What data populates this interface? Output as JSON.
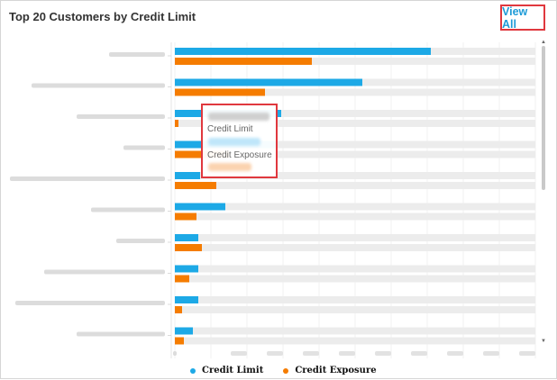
{
  "header": {
    "title": "Top 20 Customers by Credit Limit",
    "view_all": "View All"
  },
  "tooltip": {
    "limit_label": "Credit Limit",
    "exposure_label": "Credit Exposure"
  },
  "colors": {
    "limit": "#1da9e6",
    "exposure": "#f57c00",
    "track": "#ececec",
    "highlight": "#e0383e",
    "link": "#1e9bd7"
  },
  "chart_data": {
    "type": "bar",
    "orientation": "horizontal",
    "title": "Top 20 Customers by Credit Limit",
    "xlim": [
      0,
      10
    ],
    "series": [
      {
        "name": "Credit Limit",
        "values": [
          7.1,
          5.2,
          2.95,
          2.8,
          0.7,
          1.4,
          0.65,
          0.65,
          0.65,
          0.5
        ]
      },
      {
        "name": "Credit Exposure",
        "values": [
          3.8,
          2.5,
          0.1,
          1.5,
          1.15,
          0.6,
          0.75,
          0.4,
          0.2,
          0.25
        ]
      }
    ],
    "legend": "bottom",
    "grid": true
  }
}
